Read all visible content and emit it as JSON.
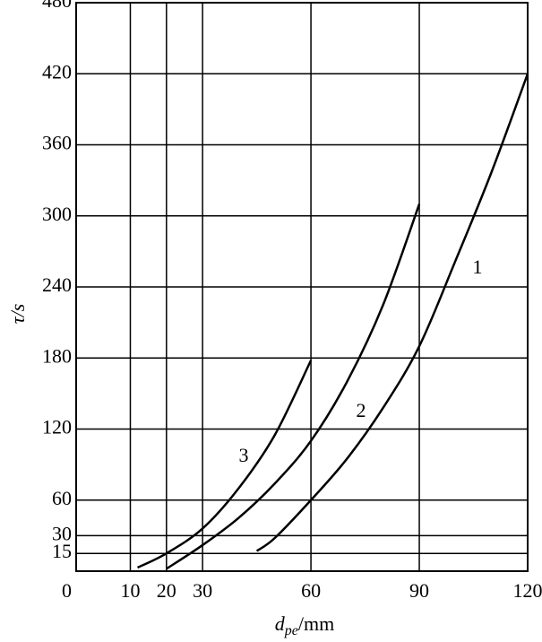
{
  "chart_data": {
    "type": "line",
    "xlabel": {
      "symbol": "d",
      "subscript": "pe",
      "unit": "/mm"
    },
    "ylabel": "τ/s",
    "xlim": [
      -5,
      120
    ],
    "ylim": [
      0,
      480
    ],
    "xticks": [
      10,
      20,
      30,
      60,
      90,
      120
    ],
    "yticks": [
      0,
      15,
      30,
      60,
      120,
      180,
      240,
      300,
      360,
      420,
      480
    ],
    "grid": true,
    "series": [
      {
        "name": "1",
        "color": "#000000",
        "x": [
          45,
          50,
          60,
          70,
          80,
          90,
          100,
          110,
          120
        ],
        "values": [
          17,
          28,
          60,
          95,
          138,
          190,
          262,
          337,
          420
        ]
      },
      {
        "name": "2",
        "color": "#000000",
        "x": [
          20,
          30,
          40,
          50,
          60,
          70,
          80,
          90
        ],
        "values": [
          2,
          22,
          45,
          74,
          110,
          160,
          225,
          310
        ]
      },
      {
        "name": "3",
        "color": "#000000",
        "x": [
          12,
          20,
          30,
          40,
          50,
          60
        ],
        "values": [
          3,
          15,
          36,
          70,
          115,
          178
        ]
      }
    ]
  }
}
